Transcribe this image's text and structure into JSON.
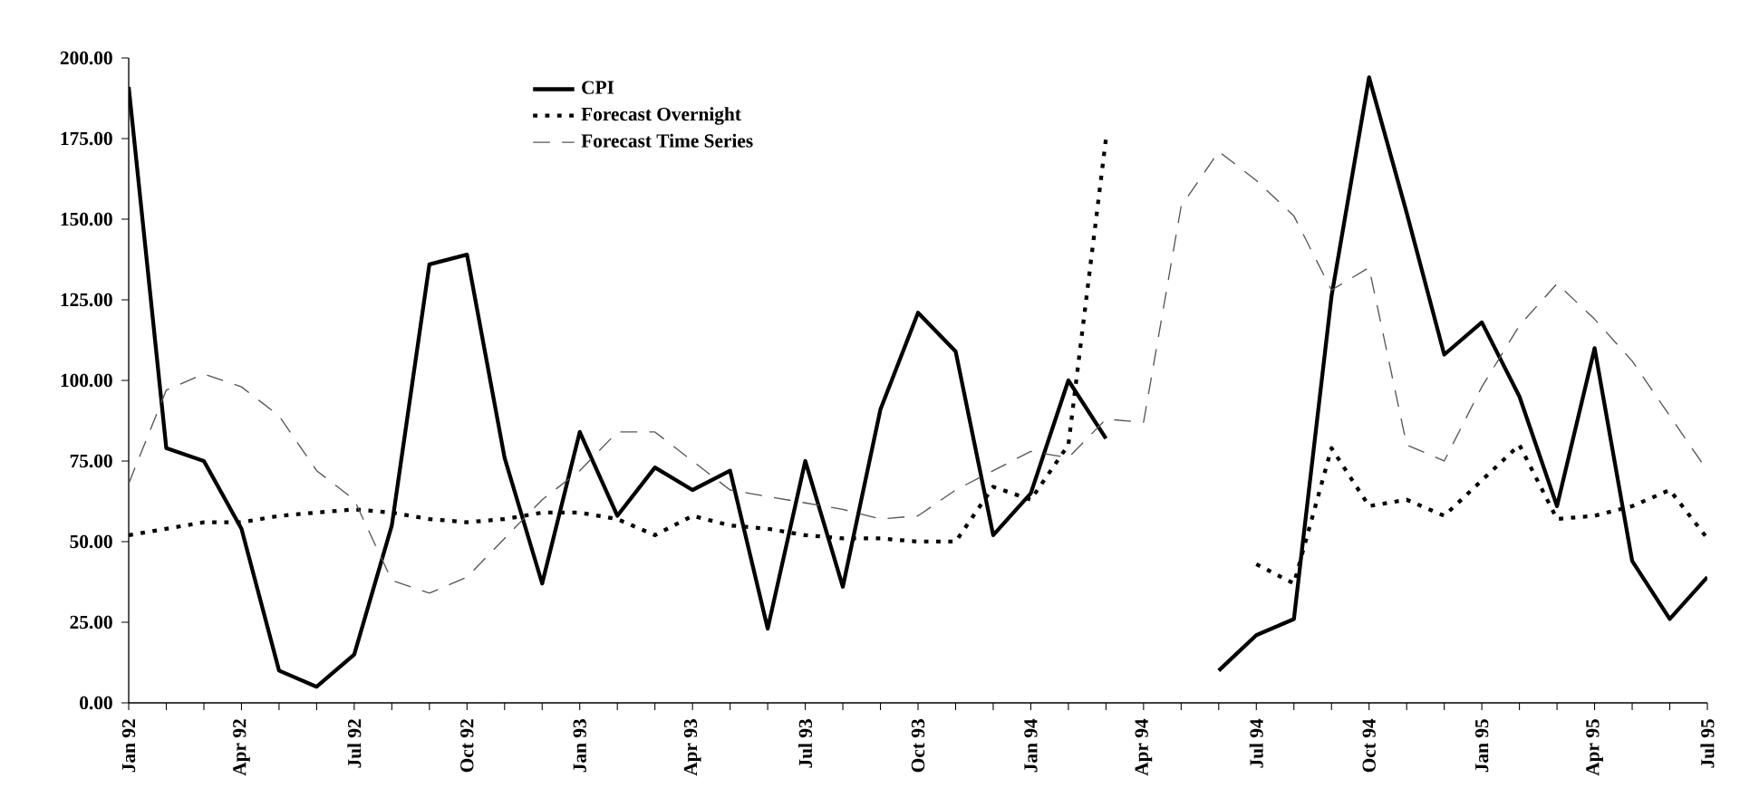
{
  "chart_data": {
    "type": "line",
    "categories": [
      "Jan 92",
      null,
      null,
      "Apr 92",
      null,
      null,
      "Jul 92",
      null,
      null,
      "Oct 92",
      null,
      null,
      "Jan 93",
      null,
      null,
      "Apr 93",
      null,
      null,
      "Jul 93",
      null,
      null,
      "Oct 93",
      null,
      null,
      "Jan 94",
      null,
      null,
      "Apr 94",
      null,
      null,
      "Jul 94",
      null,
      null,
      "Oct 94",
      null,
      null,
      "Jan 95",
      null,
      null,
      "Apr 95",
      null,
      null,
      "Jul 95"
    ],
    "series": [
      {
        "name": "CPI",
        "color": "#000000",
        "line_style": "solid",
        "values": [
          191,
          79,
          75,
          54,
          10,
          5,
          15,
          55,
          136,
          139,
          76,
          37,
          84,
          58,
          73,
          66,
          72,
          23,
          75,
          36,
          91,
          121,
          109,
          52,
          65,
          100,
          82,
          null,
          null,
          10,
          21,
          26,
          126,
          194,
          152,
          108,
          118,
          95,
          61,
          110,
          44,
          26,
          39
        ]
      },
      {
        "name": "Forecast Overnight",
        "color": "#000000",
        "line_style": "dotted",
        "values": [
          52,
          54,
          56,
          56,
          58,
          59,
          60,
          59,
          57,
          56,
          57,
          59,
          59,
          57,
          52,
          58,
          55,
          54,
          52,
          51,
          51,
          50,
          50,
          67,
          63,
          80,
          175,
          null,
          null,
          null,
          43,
          37,
          79,
          61,
          63,
          58,
          69,
          80,
          57,
          58,
          61,
          66,
          51
        ]
      },
      {
        "name": "Forecast Time Series",
        "color": "#555555",
        "line_style": "dashed",
        "values": [
          68,
          97,
          102,
          98,
          89,
          72,
          63,
          38,
          34,
          39,
          51,
          63,
          72,
          84,
          84,
          75,
          66,
          64,
          62,
          60,
          57,
          58,
          66,
          72,
          78,
          76,
          88,
          87,
          154,
          171,
          162,
          151,
          128,
          135,
          80,
          75,
          98,
          117,
          130,
          119,
          106,
          89,
          72
        ]
      }
    ],
    "ylim": [
      0,
      200
    ],
    "yticks": [
      {
        "value": 0,
        "label": "0.00"
      },
      {
        "value": 25,
        "label": "25.00"
      },
      {
        "value": 50,
        "label": "50.00"
      },
      {
        "value": 75,
        "label": "75.00"
      },
      {
        "value": 100,
        "label": "100.00"
      },
      {
        "value": 125,
        "label": "125.00"
      },
      {
        "value": 150,
        "label": "150.00"
      },
      {
        "value": 175,
        "label": "175.00"
      },
      {
        "value": 200,
        "label": "200.00"
      }
    ],
    "legend": "top"
  }
}
